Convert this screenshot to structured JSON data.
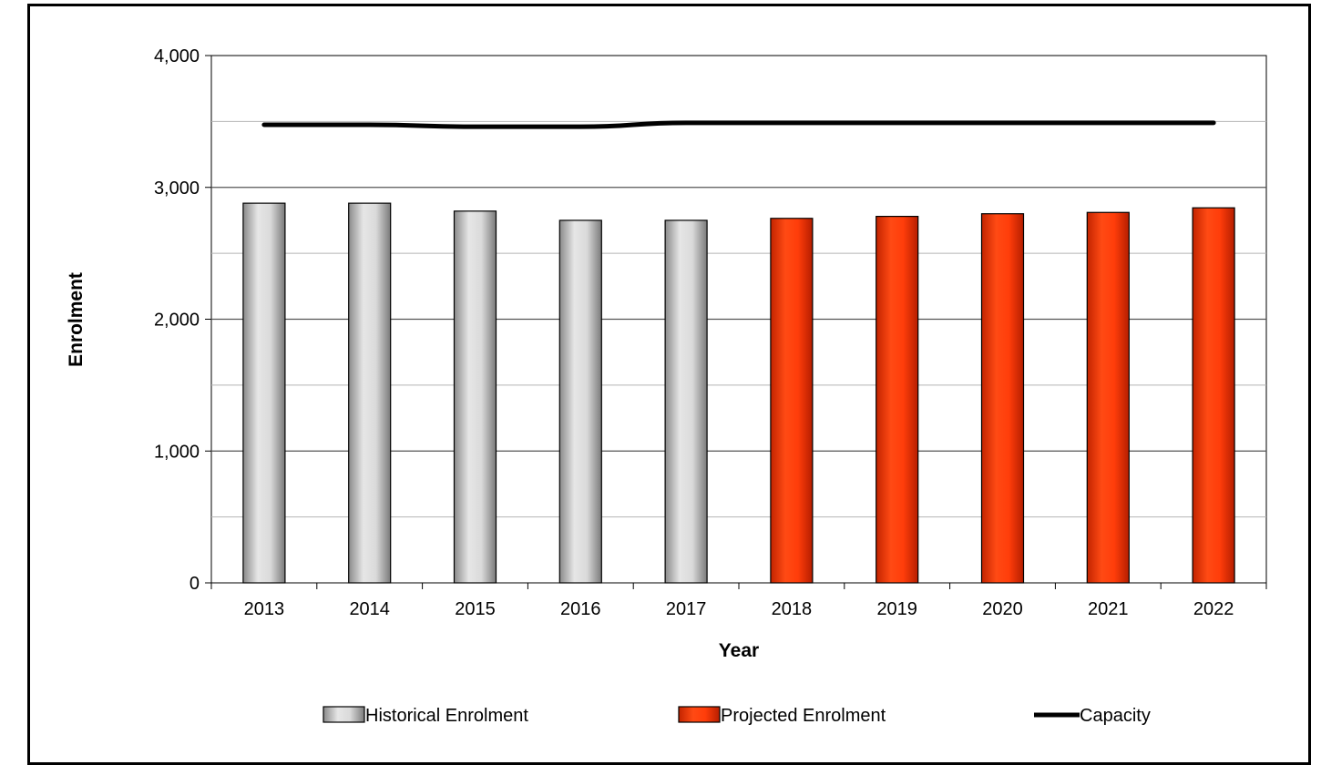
{
  "chart_data": {
    "type": "bar",
    "categories": [
      "2013",
      "2014",
      "2015",
      "2016",
      "2017",
      "2018",
      "2019",
      "2020",
      "2021",
      "2022"
    ],
    "series": [
      {
        "name": "Historical Enrolment",
        "kind": "bar",
        "color": "#c8c8c8",
        "values": [
          2880,
          2880,
          2820,
          2750,
          2750,
          null,
          null,
          null,
          null,
          null
        ]
      },
      {
        "name": "Projected Enrolment",
        "kind": "bar",
        "color": "#ff3d0a",
        "values": [
          null,
          null,
          null,
          null,
          null,
          2765,
          2780,
          2800,
          2810,
          2845
        ]
      },
      {
        "name": "Capacity",
        "kind": "line",
        "color": "#000000",
        "values": [
          3475,
          3475,
          3460,
          3460,
          3490,
          3490,
          3490,
          3490,
          3490,
          3490
        ]
      }
    ],
    "xlabel": "Year",
    "ylabel": "Enrolment",
    "ylim": [
      0,
      4000
    ],
    "yticks": [
      0,
      1000,
      2000,
      3000,
      4000
    ],
    "ytick_labels": [
      "0",
      "1,000",
      "2,000",
      "3,000",
      "4,000"
    ],
    "gridlines": true,
    "legend_position": "bottom"
  }
}
